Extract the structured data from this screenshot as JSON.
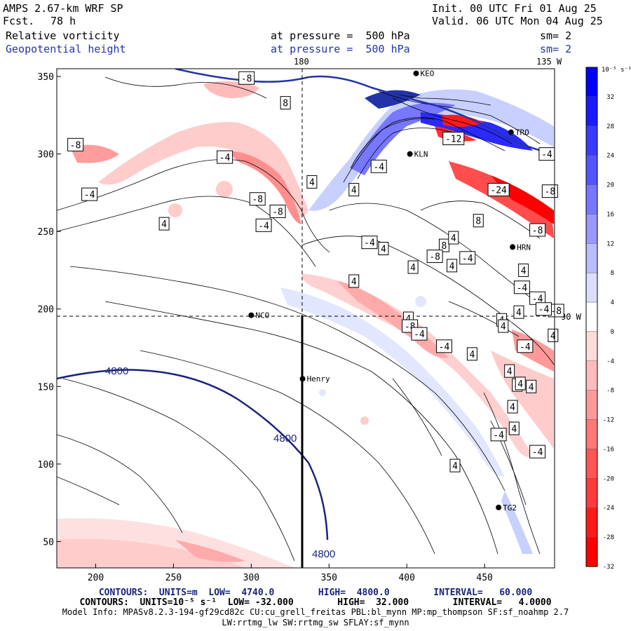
{
  "header": {
    "model": "AMPS 2.67-km WRF SP",
    "fcst_label": "Fcst.",
    "fcst_value": "78 h",
    "init": "Init. 00 UTC Fri 01 Aug 25",
    "valid": "Valid. 06 UTC Mon 04 Aug 25",
    "field1": "Relative vorticity",
    "field1_level": "at pressure =  500 hPa",
    "field1_sm": "sm= 2",
    "field2": "Geopotential height",
    "field2_level": "at pressure =  500 hPa",
    "field2_sm": "sm= 2"
  },
  "map": {
    "meridian_180_label": "180",
    "meridian_135w_label": "135 W",
    "meridian_90w_label": "90 W",
    "x_ticks": [
      "200",
      "250",
      "300",
      "350",
      "400",
      "450"
    ],
    "y_ticks": [
      "350",
      "300",
      "250",
      "200",
      "150",
      "100",
      "50"
    ],
    "stations": [
      {
        "name": "NCO"
      },
      {
        "name": "Henry"
      },
      {
        "name": "KLN"
      },
      {
        "name": "HRN"
      },
      {
        "name": "TRO"
      },
      {
        "name": "KEO"
      },
      {
        "name": "TG2"
      }
    ],
    "height_labels": [
      "4800",
      "4800",
      "4800"
    ],
    "vort_labels": [
      "-8",
      "8",
      "-8",
      "-4",
      "4",
      "-4",
      "-8",
      "-8",
      "-4",
      "4",
      "-4",
      "4",
      "8",
      "4",
      "-4",
      "4",
      "4",
      "-4",
      "4",
      "4",
      "-4",
      "-8",
      "4",
      "4",
      "4",
      "4",
      "-4",
      "4",
      "-8",
      "4",
      "-4",
      "-4",
      "4",
      "4",
      "4",
      "-4",
      "4",
      "4",
      "4",
      "-4",
      "4",
      "-12",
      "-24",
      "-8",
      "8",
      "-8",
      "-4",
      "-8",
      "-4",
      "-4",
      "4"
    ]
  },
  "colorbar": {
    "title": "10⁻⁵ s⁻¹",
    "ticks": [
      "32",
      "28",
      "24",
      "20",
      "16",
      "12",
      "8",
      "4",
      "0",
      "-4",
      "-8",
      "-12",
      "-16",
      "-20",
      "-24",
      "-28",
      "-32"
    ],
    "colors": [
      "#0000ff",
      "#1a1aff",
      "#3a3aff",
      "#5555ff",
      "#7777ff",
      "#9999ff",
      "#bbbbff",
      "#dcdcff",
      "#ffffff",
      "#ffdcdc",
      "#ffbbbb",
      "#ff9999",
      "#ff7777",
      "#ff5555",
      "#ff3a3a",
      "#ff1a1a",
      "#ff0000"
    ]
  },
  "footer": {
    "line1": "CONTOURS:  UNITS=m  LOW=  4740.0        HIGH=  4800.0        INTERVAL=   60.000",
    "line2": "CONTOURS:  UNITS=10⁻⁵ s⁻¹  LOW= -32.000        HIGH=  32.000        INTERVAL=   4.0000",
    "line3": "Model Info: MPASv8.2.3-194-gf29cd82c CU:cu_grell_freitas PBL:bl_mynn MP:mp_thompson SF:sf_noahmp 2.7",
    "line4": "LW:rrtmg_lw SW:rrtmg_sw SFLAY:sf_mynn"
  }
}
